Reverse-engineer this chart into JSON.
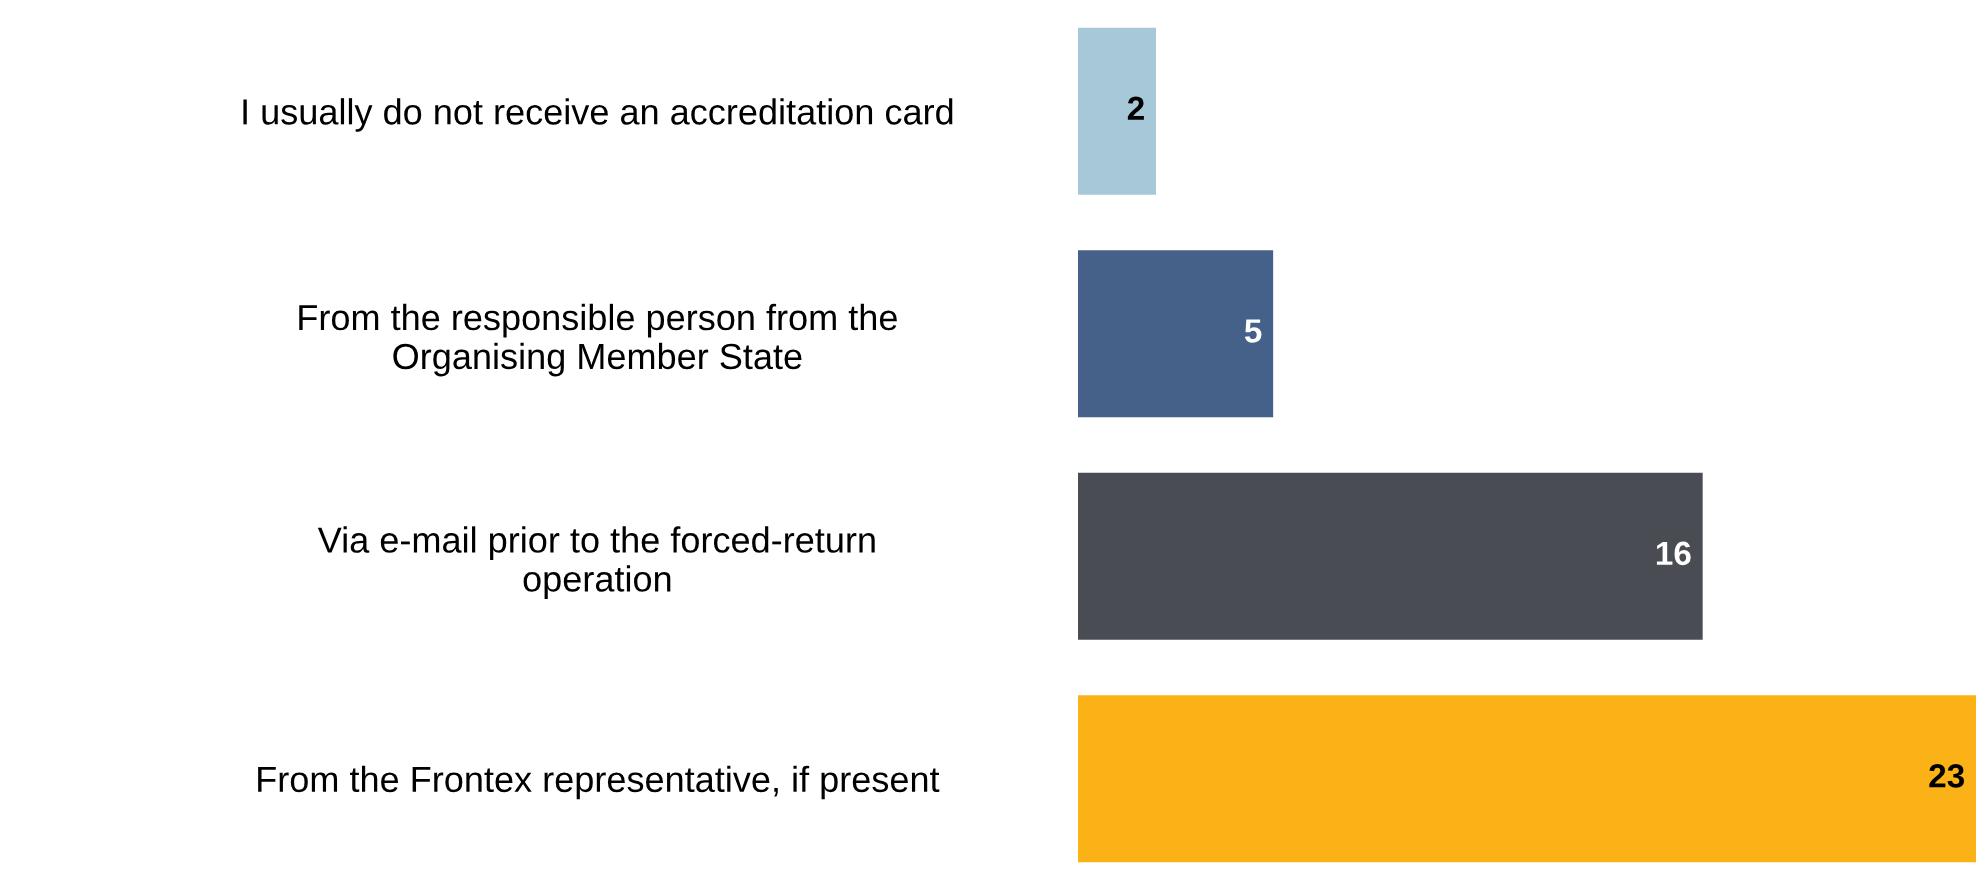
{
  "chart_data": {
    "type": "bar",
    "orientation": "horizontal",
    "data_labels": true,
    "grid": false,
    "legend": false,
    "categories": [
      "I usually do not receive an accreditation card",
      "From the responsible person from the\nOrganising Member State",
      "Via e-mail prior to the forced-return\noperation",
      "From the Frontex representative, if present"
    ],
    "values": [
      2,
      5,
      16,
      23
    ],
    "colors": [
      "#a6c8d8",
      "#45618a",
      "#4a4c54",
      "#fbb216"
    ]
  }
}
